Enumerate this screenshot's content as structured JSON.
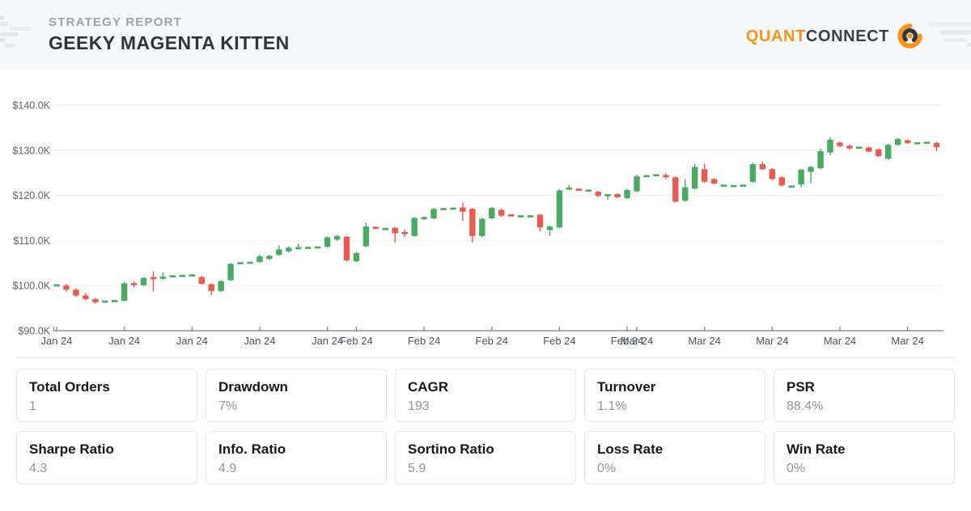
{
  "header": {
    "eyebrow": "STRATEGY REPORT",
    "title": "GEEKY MAGENTA KITTEN",
    "brand": {
      "first": "QUANT",
      "second": "CONNECT"
    }
  },
  "chart_data": {
    "type": "candlestick",
    "description": "Equity curve, daily OHLC candles, values in USD thousands",
    "y_axis": {
      "tick_labels": [
        "$140.0K",
        "$130.0K",
        "$120.0K",
        "$110.0K",
        "$100.0K",
        "$90.0K"
      ],
      "tick_values": [
        140,
        130,
        120,
        110,
        100,
        90
      ],
      "range": [
        90,
        140
      ]
    },
    "x_axis": {
      "ticks": [
        {
          "label": "Jan 24",
          "day": 0
        },
        {
          "label": "Jan 24",
          "day": 7
        },
        {
          "label": "Jan 24",
          "day": 14
        },
        {
          "label": "Jan 24",
          "day": 21
        },
        {
          "label": "Jan 24",
          "day": 28
        },
        {
          "label": "Feb 24",
          "day": 31
        },
        {
          "label": "Feb 24",
          "day": 38
        },
        {
          "label": "Feb 24",
          "day": 45
        },
        {
          "label": "Feb 24",
          "day": 52
        },
        {
          "label": "Feb 24",
          "day": 59
        },
        {
          "label": "Mar 24",
          "day": 60
        },
        {
          "label": "Mar 24",
          "day": 67
        },
        {
          "label": "Mar 24",
          "day": 74
        },
        {
          "label": "Mar 24",
          "day": 81
        },
        {
          "label": "Mar 24",
          "day": 88
        }
      ]
    },
    "candles": [
      [
        100.0,
        100.3,
        99.9,
        100.1
      ],
      [
        100.0,
        100.4,
        98.6,
        99.1
      ],
      [
        99.1,
        99.4,
        97.5,
        97.8
      ],
      [
        97.8,
        98.4,
        96.7,
        97.0
      ],
      [
        97.0,
        97.3,
        96.0,
        96.3
      ],
      [
        96.4,
        96.6,
        96.3,
        96.5
      ],
      [
        96.5,
        96.7,
        96.4,
        96.6
      ],
      [
        96.6,
        100.8,
        96.5,
        100.5
      ],
      [
        100.5,
        100.9,
        99.6,
        100.1
      ],
      [
        100.1,
        101.9,
        99.9,
        101.7
      ],
      [
        101.7,
        103.2,
        98.7,
        101.6
      ],
      [
        101.6,
        102.9,
        101.3,
        101.9
      ],
      [
        102.0,
        102.2,
        101.9,
        102.1
      ],
      [
        102.1,
        102.3,
        102.0,
        102.2
      ],
      [
        102.2,
        102.4,
        102.1,
        102.3
      ],
      [
        101.9,
        102.1,
        100.2,
        100.4
      ],
      [
        100.3,
        100.5,
        97.9,
        98.8
      ],
      [
        98.8,
        101.2,
        98.5,
        101.0
      ],
      [
        101.2,
        105.0,
        101.0,
        104.8
      ],
      [
        104.9,
        105.1,
        104.8,
        105.0
      ],
      [
        105.0,
        105.2,
        104.9,
        105.1
      ],
      [
        105.2,
        106.8,
        105.1,
        106.5
      ],
      [
        105.9,
        106.8,
        105.7,
        106.6
      ],
      [
        106.8,
        108.9,
        106.6,
        108.0
      ],
      [
        107.6,
        108.7,
        107.3,
        108.4
      ],
      [
        108.2,
        109.3,
        108.0,
        108.4
      ],
      [
        108.3,
        108.5,
        108.2,
        108.4
      ],
      [
        108.4,
        108.6,
        108.3,
        108.5
      ],
      [
        108.6,
        110.9,
        108.4,
        110.7
      ],
      [
        110.2,
        111.2,
        109.9,
        111.0
      ],
      [
        110.8,
        111.0,
        105.3,
        105.6
      ],
      [
        105.4,
        107.5,
        105.2,
        107.2
      ],
      [
        108.7,
        114.0,
        108.5,
        113.1
      ],
      [
        112.9,
        113.1,
        112.5,
        112.7
      ],
      [
        112.5,
        112.7,
        112.4,
        112.6
      ],
      [
        112.8,
        113.0,
        109.5,
        111.6
      ],
      [
        111.7,
        112.4,
        110.8,
        111.6
      ],
      [
        111.0,
        115.2,
        110.8,
        115.0
      ],
      [
        114.9,
        115.3,
        114.5,
        115.0
      ],
      [
        114.9,
        117.2,
        114.7,
        117.0
      ],
      [
        116.9,
        117.1,
        116.8,
        117.0
      ],
      [
        117.0,
        117.2,
        116.9,
        117.1
      ],
      [
        117.3,
        118.4,
        114.3,
        116.4
      ],
      [
        117.0,
        117.2,
        109.5,
        111.0
      ],
      [
        111.0,
        115.0,
        110.7,
        114.8
      ],
      [
        114.9,
        117.4,
        114.7,
        117.2
      ],
      [
        116.8,
        117.1,
        115.2,
        115.5
      ],
      [
        115.6,
        115.7,
        115.4,
        115.5
      ],
      [
        115.3,
        115.5,
        115.2,
        115.4
      ],
      [
        115.3,
        115.5,
        115.2,
        115.4
      ],
      [
        115.7,
        115.9,
        112.0,
        112.9
      ],
      [
        112.3,
        113.3,
        111.0,
        113.1
      ],
      [
        112.9,
        121.4,
        112.7,
        121.1
      ],
      [
        121.4,
        122.3,
        121.2,
        121.6
      ],
      [
        121.3,
        121.4,
        121.1,
        121.2
      ],
      [
        121.0,
        121.2,
        120.9,
        121.1
      ],
      [
        120.8,
        121.0,
        119.6,
        119.9
      ],
      [
        120.0,
        120.2,
        119.0,
        120.1
      ],
      [
        120.3,
        120.5,
        119.4,
        119.6
      ],
      [
        119.4,
        121.4,
        119.2,
        121.2
      ],
      [
        120.9,
        124.6,
        120.7,
        124.2
      ],
      [
        124.2,
        124.4,
        124.1,
        124.3
      ],
      [
        124.4,
        124.6,
        124.3,
        124.5
      ],
      [
        124.3,
        124.9,
        123.6,
        124.2
      ],
      [
        124.0,
        124.2,
        118.4,
        118.6
      ],
      [
        118.8,
        123.6,
        118.6,
        121.8
      ],
      [
        121.5,
        126.9,
        121.3,
        126.3
      ],
      [
        125.8,
        127.0,
        122.8,
        123.0
      ],
      [
        123.6,
        123.8,
        122.4,
        122.6
      ],
      [
        122.1,
        122.3,
        122.0,
        122.2
      ],
      [
        122.0,
        122.2,
        121.9,
        122.1
      ],
      [
        122.1,
        122.3,
        122.0,
        122.2
      ],
      [
        123.0,
        127.2,
        122.8,
        126.9
      ],
      [
        126.9,
        127.5,
        125.6,
        125.8
      ],
      [
        125.8,
        126.0,
        123.4,
        123.6
      ],
      [
        124.0,
        124.2,
        122.0,
        122.2
      ],
      [
        121.9,
        122.1,
        121.8,
        122.0
      ],
      [
        122.4,
        125.9,
        121.8,
        125.7
      ],
      [
        125.2,
        126.5,
        122.7,
        126.3
      ],
      [
        126.0,
        130.4,
        125.8,
        129.8
      ],
      [
        129.5,
        132.9,
        128.9,
        132.3
      ],
      [
        131.7,
        131.9,
        130.7,
        130.9
      ],
      [
        131.0,
        131.2,
        130.2,
        130.4
      ],
      [
        130.5,
        130.7,
        130.4,
        130.6
      ],
      [
        130.6,
        130.8,
        129.5,
        129.7
      ],
      [
        130.2,
        130.4,
        128.5,
        128.7
      ],
      [
        128.1,
        131.4,
        127.9,
        131.2
      ],
      [
        131.2,
        132.7,
        131.0,
        132.5
      ],
      [
        132.2,
        132.4,
        131.4,
        131.6
      ],
      [
        131.5,
        131.7,
        131.4,
        131.6
      ],
      [
        131.6,
        131.8,
        131.5,
        131.7
      ],
      [
        131.6,
        131.9,
        129.8,
        130.7
      ]
    ],
    "colors": {
      "up": "#4aa963",
      "down": "#e85a52",
      "grid": "#e9edf2",
      "axis": "#757d87",
      "x_label": "#4b5563",
      "y_label": "#5b6470"
    }
  },
  "stats": {
    "cards": [
      {
        "label": "Total Orders",
        "value": "1"
      },
      {
        "label": "Drawdown",
        "value": "7%"
      },
      {
        "label": "CAGR",
        "value": "193"
      },
      {
        "label": "Turnover",
        "value": "1.1%"
      },
      {
        "label": "PSR",
        "value": "88.4%"
      },
      {
        "label": "Sharpe Ratio",
        "value": "4.3"
      },
      {
        "label": "Info. Ratio",
        "value": "4.9"
      },
      {
        "label": "Sortino Ratio",
        "value": "5.9"
      },
      {
        "label": "Loss Rate",
        "value": "0%"
      },
      {
        "label": "Win Rate",
        "value": "0%"
      }
    ]
  }
}
